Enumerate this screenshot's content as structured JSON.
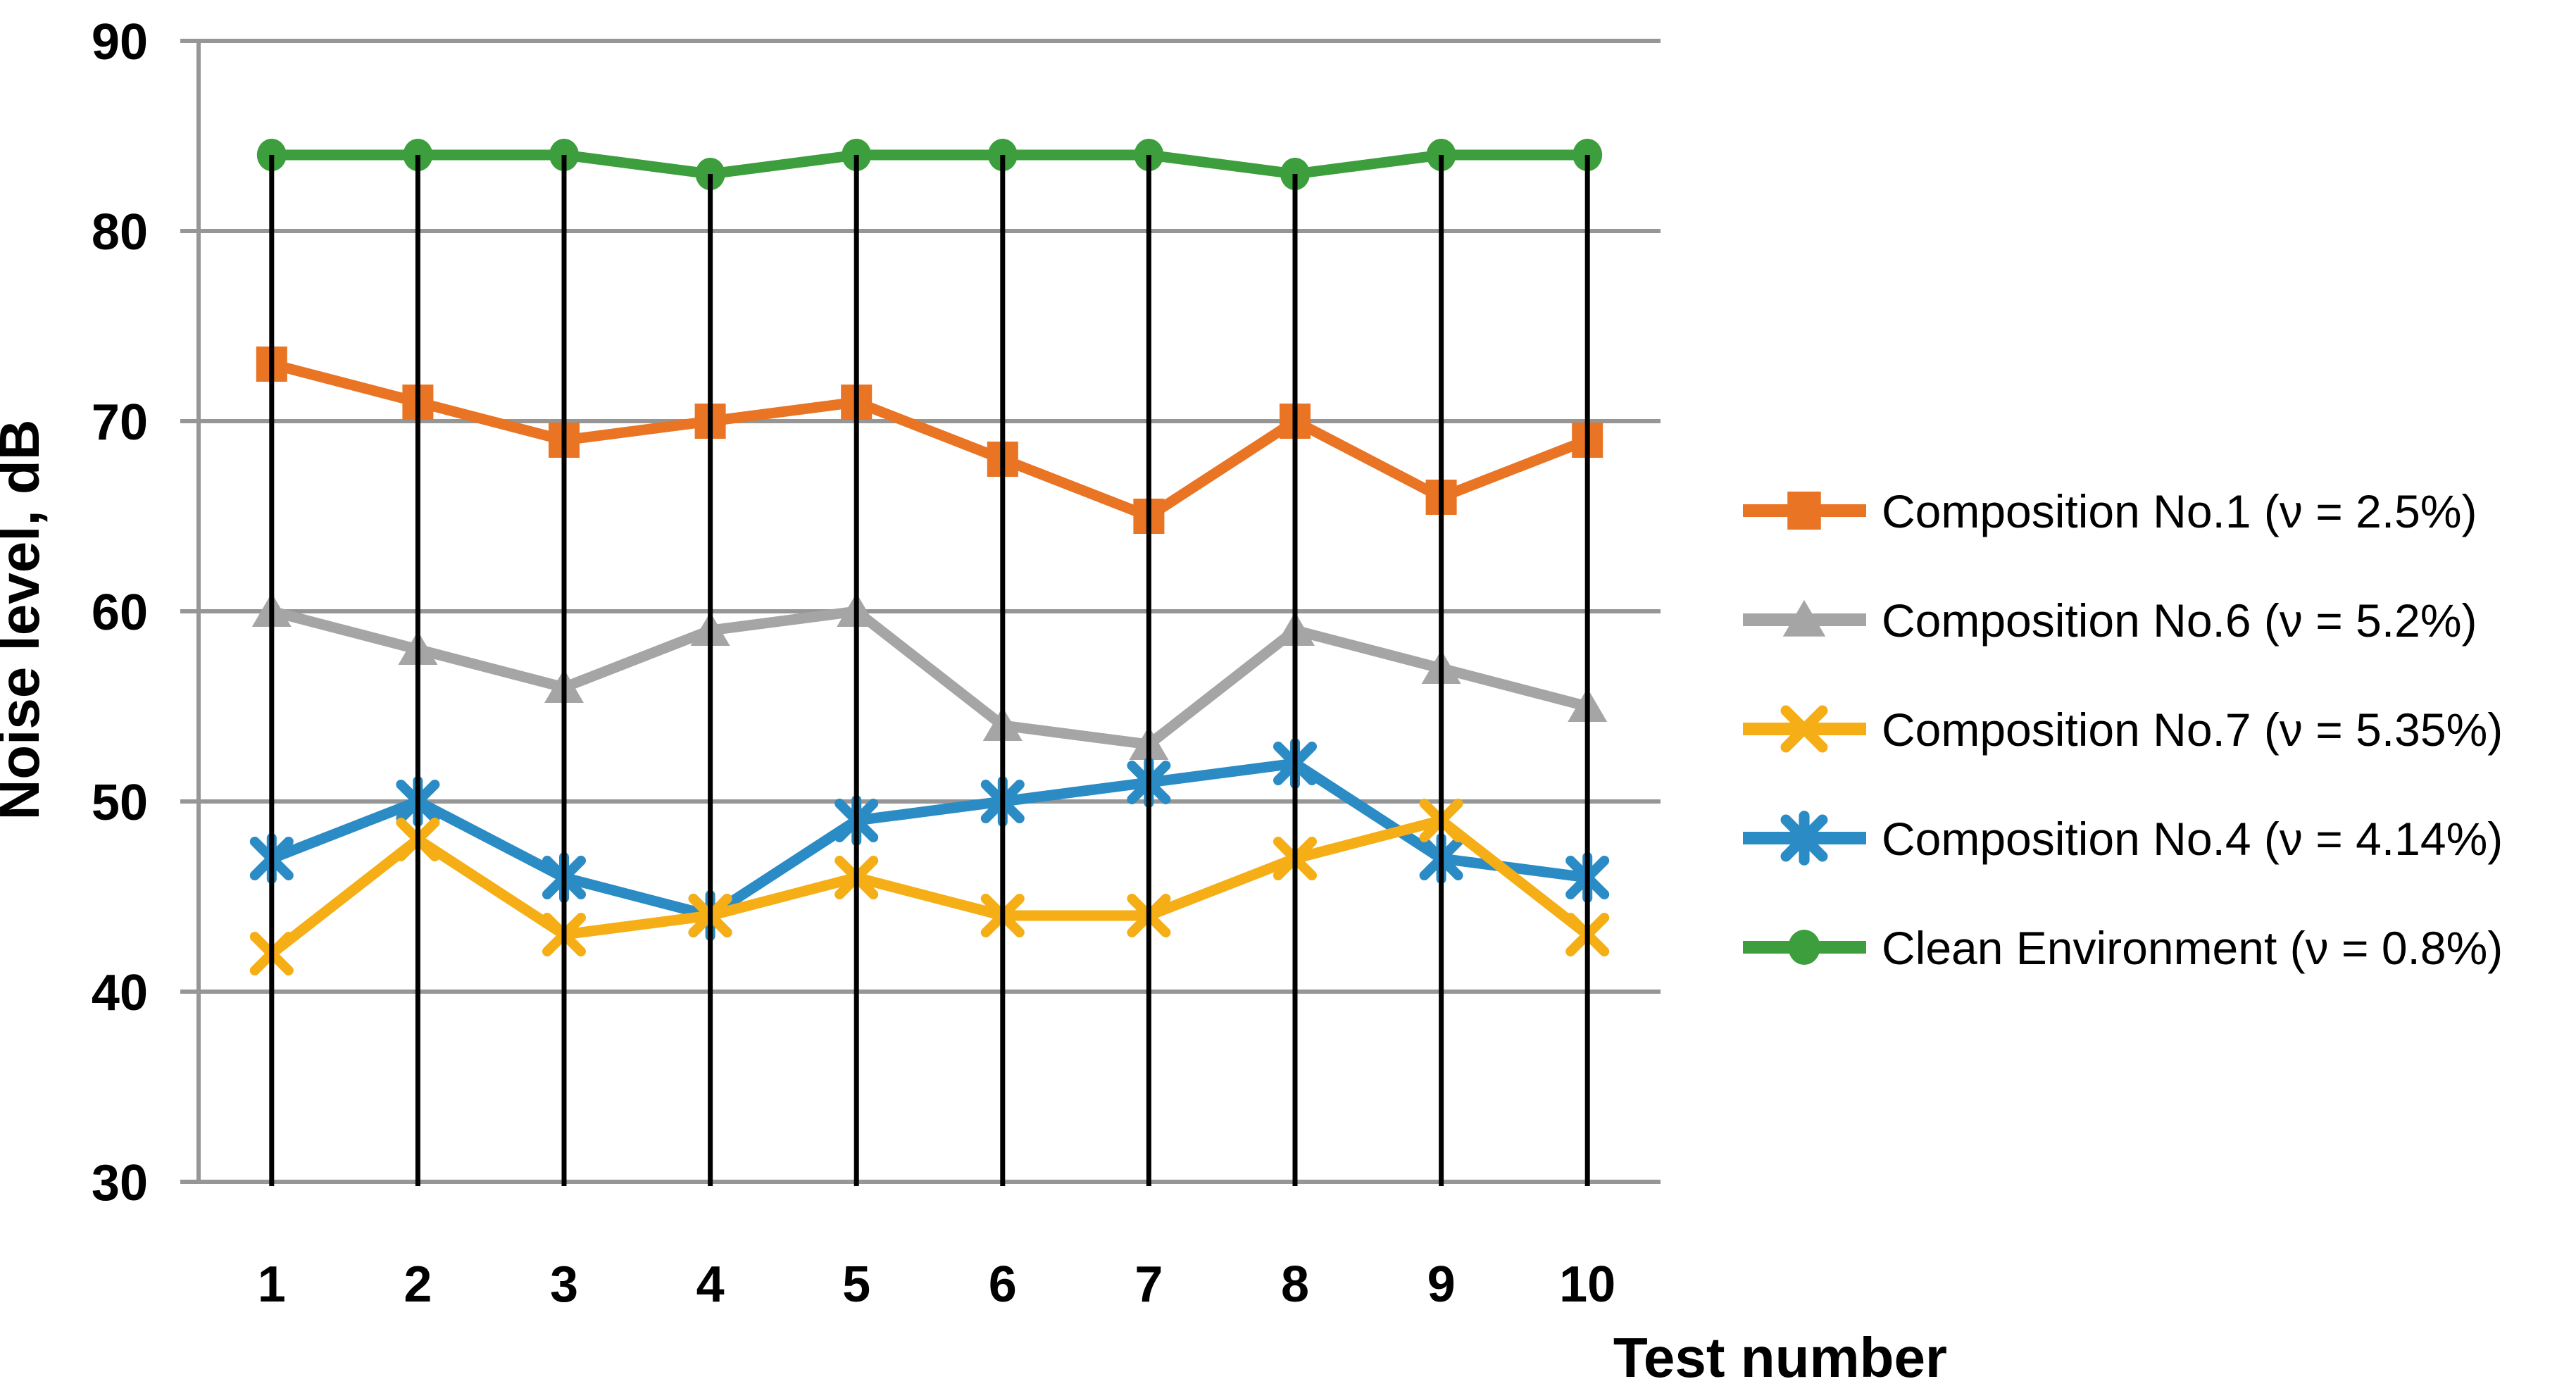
{
  "figure": {
    "background": "#FFFFFF"
  },
  "chart_data": {
    "type": "line",
    "title": "",
    "xlabel": "Test number",
    "ylabel": "Noise level, dB",
    "x": [
      1,
      2,
      3,
      4,
      5,
      6,
      7,
      8,
      9,
      10
    ],
    "x_ticks": [
      "1",
      "2",
      "3",
      "4",
      "5",
      "6",
      "7",
      "8",
      "9",
      "10"
    ],
    "y_ticks": [
      "90",
      "80",
      "70",
      "60",
      "50",
      "40",
      "30"
    ],
    "ylim": [
      30,
      90
    ],
    "ytick_step": 10,
    "grid": true,
    "drop_lines": true,
    "legend_position": "right",
    "series": [
      {
        "name": "Composition No.1 (ν = 2.5%)",
        "marker": "square",
        "color": "#E87424",
        "values": [
          73,
          71,
          69,
          70,
          71,
          68,
          65,
          70,
          66,
          69
        ]
      },
      {
        "name": "Composition No.6 (ν = 5.2%)",
        "marker": "triangle",
        "color": "#A5A5A5",
        "values": [
          60,
          58,
          56,
          59,
          60,
          54,
          53,
          59,
          57,
          55
        ]
      },
      {
        "name": "Composition No.7 (ν = 5.35%)",
        "marker": "x",
        "color": "#F5AE15",
        "values": [
          42,
          48,
          43,
          44,
          46,
          44,
          44,
          47,
          49,
          43
        ]
      },
      {
        "name": "Composition No.4 (ν = 4.14%)",
        "marker": "asterisk",
        "color": "#2A8BC5",
        "values": [
          47,
          50,
          46,
          44,
          49,
          50,
          51,
          52,
          47,
          46
        ]
      },
      {
        "name": "Clean Environment (ν = 0.8%)",
        "marker": "circle",
        "color": "#3C9E3C",
        "values": [
          84,
          84,
          84,
          83,
          84,
          84,
          84,
          83,
          84,
          84
        ]
      }
    ],
    "colors": {
      "gridline": "#969696",
      "axis_line": "#969696",
      "drop_line": "#000000",
      "text": "#000000",
      "background": "#FFFFFF"
    }
  }
}
